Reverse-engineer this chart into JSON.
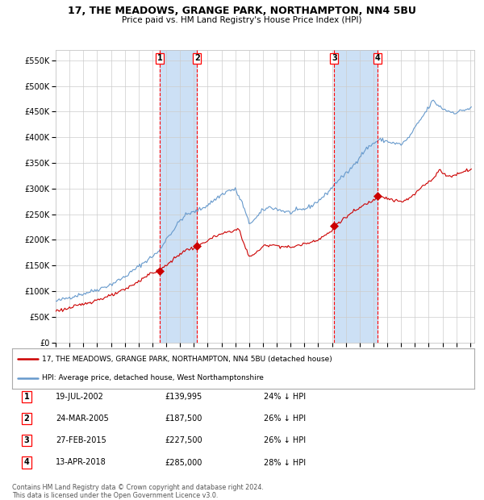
{
  "title": "17, THE MEADOWS, GRANGE PARK, NORTHAMPTON, NN4 5BU",
  "subtitle": "Price paid vs. HM Land Registry's House Price Index (HPI)",
  "title_fontsize": 9,
  "subtitle_fontsize": 7.5,
  "background_color": "#ffffff",
  "plot_bg_color": "#ffffff",
  "grid_color": "#cccccc",
  "hpi_line_color": "#6699cc",
  "price_line_color": "#cc0000",
  "shade_color": "#cce0f5",
  "transactions": [
    {
      "num": 1,
      "date": "2002-07-19",
      "price": 139995,
      "pct": "24%",
      "x_num": 2002.547
    },
    {
      "num": 2,
      "date": "2005-03-24",
      "price": 187500,
      "pct": "26%",
      "x_num": 2005.228
    },
    {
      "num": 3,
      "date": "2015-02-27",
      "price": 227500,
      "pct": "26%",
      "x_num": 2015.158
    },
    {
      "num": 4,
      "date": "2018-04-13",
      "price": 285000,
      "pct": "28%",
      "x_num": 2018.28
    }
  ],
  "legend_label_red": "17, THE MEADOWS, GRANGE PARK, NORTHAMPTON, NN4 5BU (detached house)",
  "legend_label_blue": "HPI: Average price, detached house, West Northamptonshire",
  "footer": "Contains HM Land Registry data © Crown copyright and database right 2024.\nThis data is licensed under the Open Government Licence v3.0.",
  "table_rows": [
    {
      "num": 1,
      "date": "19-JUL-2002",
      "price": "£139,995",
      "pct": "24% ↓ HPI"
    },
    {
      "num": 2,
      "date": "24-MAR-2005",
      "price": "£187,500",
      "pct": "26% ↓ HPI"
    },
    {
      "num": 3,
      "date": "27-FEB-2015",
      "price": "£227,500",
      "pct": "26% ↓ HPI"
    },
    {
      "num": 4,
      "date": "13-APR-2018",
      "price": "£285,000",
      "pct": "28% ↓ HPI"
    }
  ],
  "ylim": [
    0,
    570000
  ],
  "yticks": [
    0,
    50000,
    100000,
    150000,
    200000,
    250000,
    300000,
    350000,
    400000,
    450000,
    500000,
    550000
  ],
  "xlim_start": 1995.0,
  "xlim_end": 2025.3
}
